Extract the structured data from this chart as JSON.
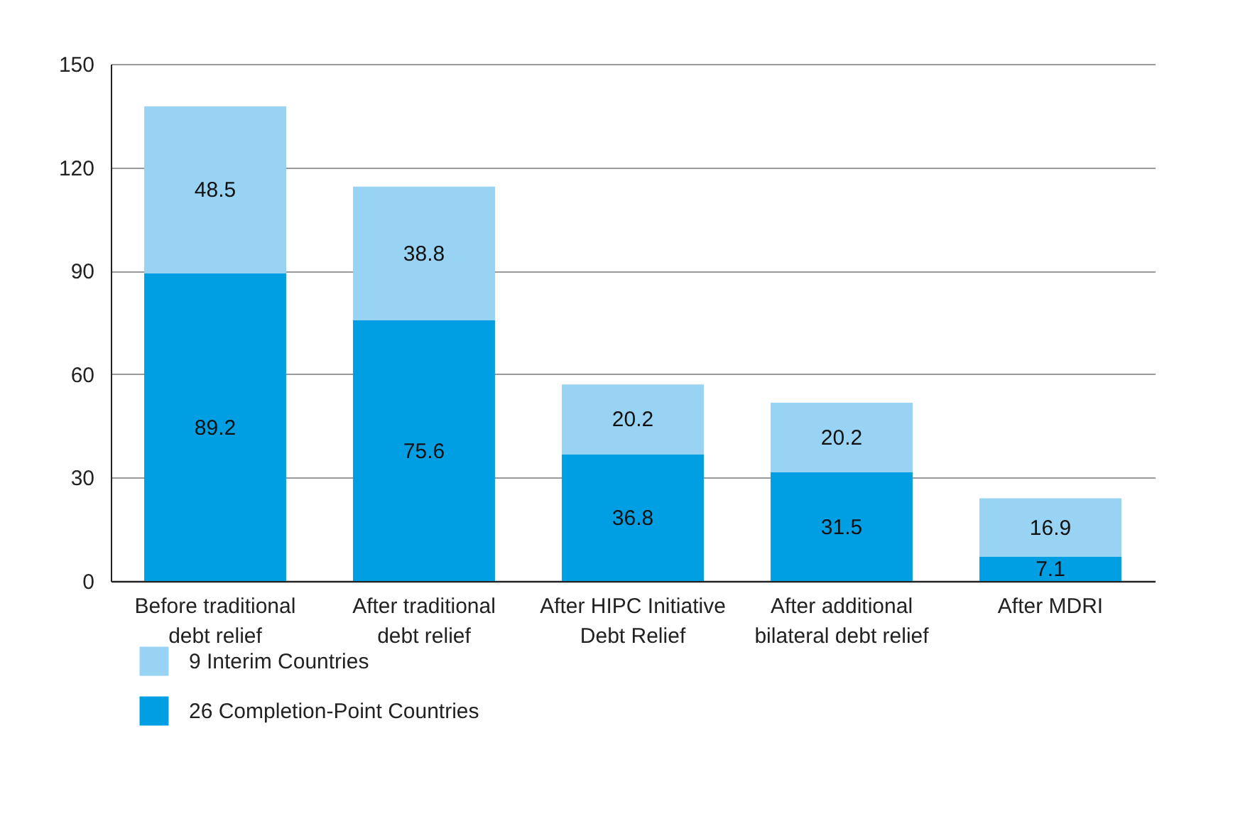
{
  "chart_data": {
    "type": "bar",
    "stacked": true,
    "categories": [
      "Before traditional debt relief",
      "After traditional debt relief",
      "After HIPC Initiative Debt Relief",
      "After additional bilateral debt relief",
      "After MDRI"
    ],
    "series": [
      {
        "name": "26 Completion-Point Countries",
        "color": "#009fe3",
        "values": [
          89.2,
          75.6,
          36.8,
          31.5,
          7.1
        ]
      },
      {
        "name": "9 Interim Countries",
        "color": "#99d3f3",
        "values": [
          48.5,
          38.8,
          20.2,
          20.2,
          16.9
        ]
      }
    ],
    "ylim": [
      0,
      150
    ],
    "yticks": [
      0,
      30,
      60,
      90,
      120,
      150
    ],
    "grid": "y",
    "legend": "bottom left",
    "data_labels": true
  }
}
